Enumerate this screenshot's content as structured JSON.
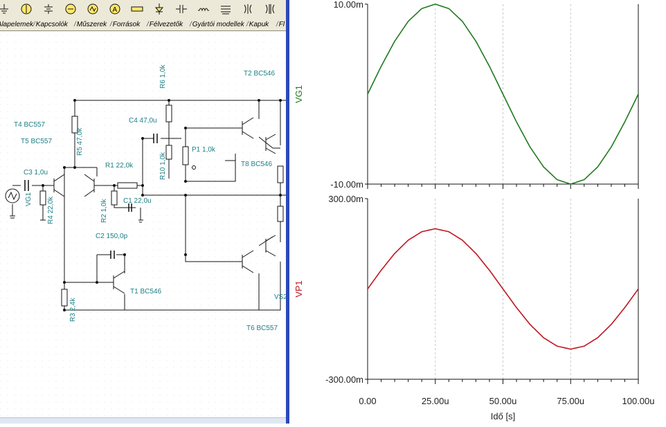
{
  "toolbar": {
    "buttons": [
      "ground-tool-icon",
      "voltmeter-tool-icon",
      "battery-tool-icon",
      "bulb-tool-icon",
      "signal-source-tool-icon",
      "ammeter-tool-icon",
      "resistor-tool-icon",
      "diode-tool-icon",
      "capacitor-tool-icon",
      "coil-tool-icon",
      "transformer-tool-icon",
      "coupled-coil-tool-icon",
      "transformer-core-tool-icon"
    ]
  },
  "tabs": [
    "Alapelemek",
    "Kapcsolók",
    "Műszerek",
    "Források",
    "Félvezetők",
    "Gyártói modellek",
    "Kapuk",
    "Fl"
  ],
  "schematic": {
    "components": [
      {
        "id": "t4",
        "label": "T4 BC557"
      },
      {
        "id": "t5",
        "label": "T5 BC557"
      },
      {
        "id": "r5",
        "label": "R5 47,0k"
      },
      {
        "id": "r6",
        "label": "R6 1,0k"
      },
      {
        "id": "t2",
        "label": "T2 BC546"
      },
      {
        "id": "c4",
        "label": "C4 47,0u"
      },
      {
        "id": "p1",
        "label": "P1 1,0k"
      },
      {
        "id": "r10",
        "label": "R10 1,0k"
      },
      {
        "id": "t8",
        "label": "T8 BC546"
      },
      {
        "id": "r1",
        "label": "R1 22,0k"
      },
      {
        "id": "c3",
        "label": "C3 1,0u"
      },
      {
        "id": "vg1",
        "label": "VG1"
      },
      {
        "id": "r4",
        "label": "R4 22,0k"
      },
      {
        "id": "r2",
        "label": "R2 1,0k"
      },
      {
        "id": "c1",
        "label": "C1 22,0u"
      },
      {
        "id": "c2",
        "label": "C2 150,0p"
      },
      {
        "id": "t1",
        "label": "T1 BC546"
      },
      {
        "id": "r3",
        "label": "R3 2,4k"
      },
      {
        "id": "vs2",
        "label": "VS2"
      },
      {
        "id": "t6",
        "label": "T6 BC557"
      }
    ]
  },
  "chart_data": [
    {
      "type": "line",
      "ylabel": "VG1",
      "xlabel": "",
      "xlim": [
        0,
        100
      ],
      "ylim": [
        -10,
        10
      ],
      "ytick_labels": [
        "10.00m",
        "-10.00m"
      ],
      "series": [
        {
          "color": "#1f7a1f",
          "x": [
            0,
            5,
            10,
            15,
            20,
            25,
            30,
            35,
            40,
            45,
            50,
            55,
            60,
            65,
            70,
            75,
            80,
            85,
            90,
            95,
            100
          ],
          "y": [
            0,
            3.09,
            5.88,
            8.09,
            9.51,
            10,
            9.51,
            8.09,
            5.88,
            3.09,
            0,
            -3.09,
            -5.88,
            -8.09,
            -9.51,
            -10,
            -9.51,
            -8.09,
            -5.88,
            -3.09,
            0
          ]
        }
      ]
    },
    {
      "type": "line",
      "ylabel": "VP1",
      "xlabel": "Idő [s]",
      "xlim": [
        0,
        100
      ],
      "ylim": [
        -300,
        300
      ],
      "ytick_labels": [
        "300.00m",
        "-300.00m"
      ],
      "xtick_labels": [
        "0.00",
        "25.00u",
        "50.00u",
        "75.00u",
        "100.00u"
      ],
      "series": [
        {
          "color": "#c0141e",
          "x": [
            0,
            5,
            10,
            15,
            20,
            25,
            30,
            35,
            40,
            45,
            50,
            55,
            60,
            65,
            70,
            75,
            80,
            85,
            90,
            95,
            100
          ],
          "y": [
            0,
            62,
            118,
            162,
            190,
            200,
            190,
            162,
            118,
            62,
            0,
            -62,
            -118,
            -162,
            -190,
            -200,
            -190,
            -162,
            -118,
            -62,
            0
          ]
        }
      ]
    }
  ]
}
